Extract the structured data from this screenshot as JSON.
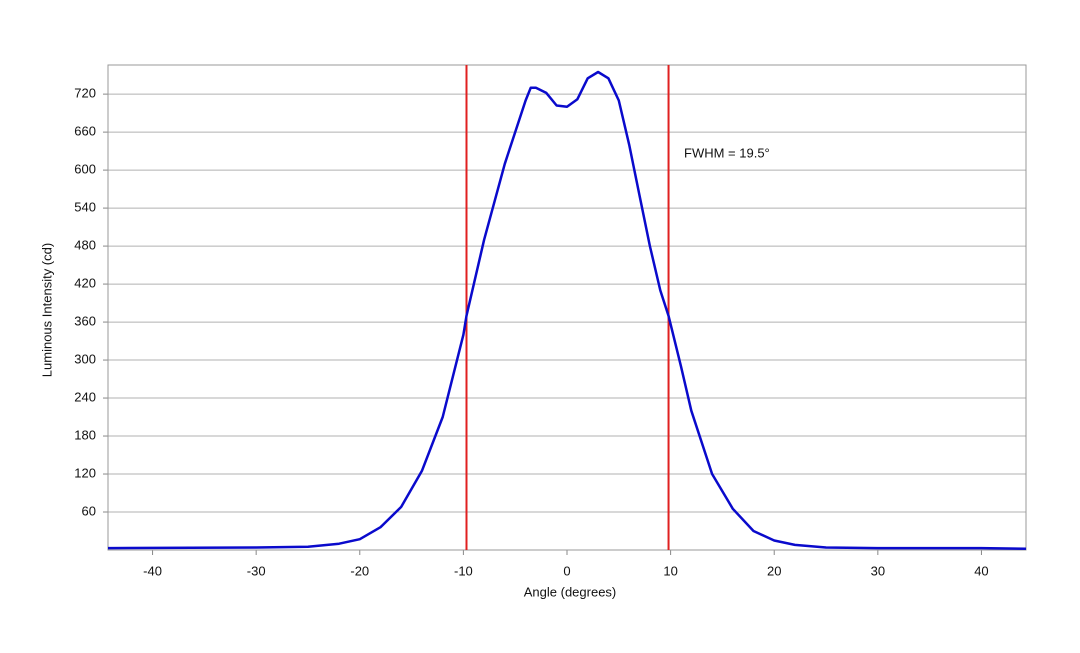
{
  "chart_data": {
    "type": "line",
    "xlabel": "Angle (degrees)",
    "ylabel": "Luminous Intensity (cd)",
    "annotation": "FWHM = 19.5°",
    "x": [
      -44.3,
      -30,
      -25,
      -22,
      -20,
      -18,
      -16,
      -14,
      -12,
      -10,
      -9.7,
      -8,
      -6,
      -5,
      -4,
      -3.5,
      -3,
      -2,
      -1,
      0,
      1,
      2,
      3,
      4,
      5,
      6,
      7,
      8,
      9,
      9.8,
      11,
      12,
      14,
      16,
      18,
      20,
      22,
      25,
      30,
      40,
      44.3
    ],
    "values": [
      3,
      4,
      5,
      10,
      17,
      36,
      68,
      125,
      210,
      340,
      370,
      490,
      610,
      660,
      710,
      730,
      730,
      722,
      702,
      700,
      712,
      745,
      755,
      745,
      710,
      640,
      560,
      480,
      410,
      370,
      290,
      220,
      120,
      65,
      30,
      15,
      8,
      4,
      3,
      3,
      2
    ],
    "color": "#0a0acc",
    "vlines": [
      -9.7,
      9.8
    ],
    "vline_color": "#e02020",
    "xlim": [
      -44.3,
      44.3
    ],
    "ylim": [
      0,
      766
    ],
    "xticks": [
      -40,
      -30,
      -20,
      -10,
      0,
      10,
      20,
      30,
      40
    ],
    "yticks": [
      60,
      120,
      180,
      240,
      300,
      360,
      420,
      480,
      540,
      600,
      660,
      720
    ],
    "grid": true
  }
}
